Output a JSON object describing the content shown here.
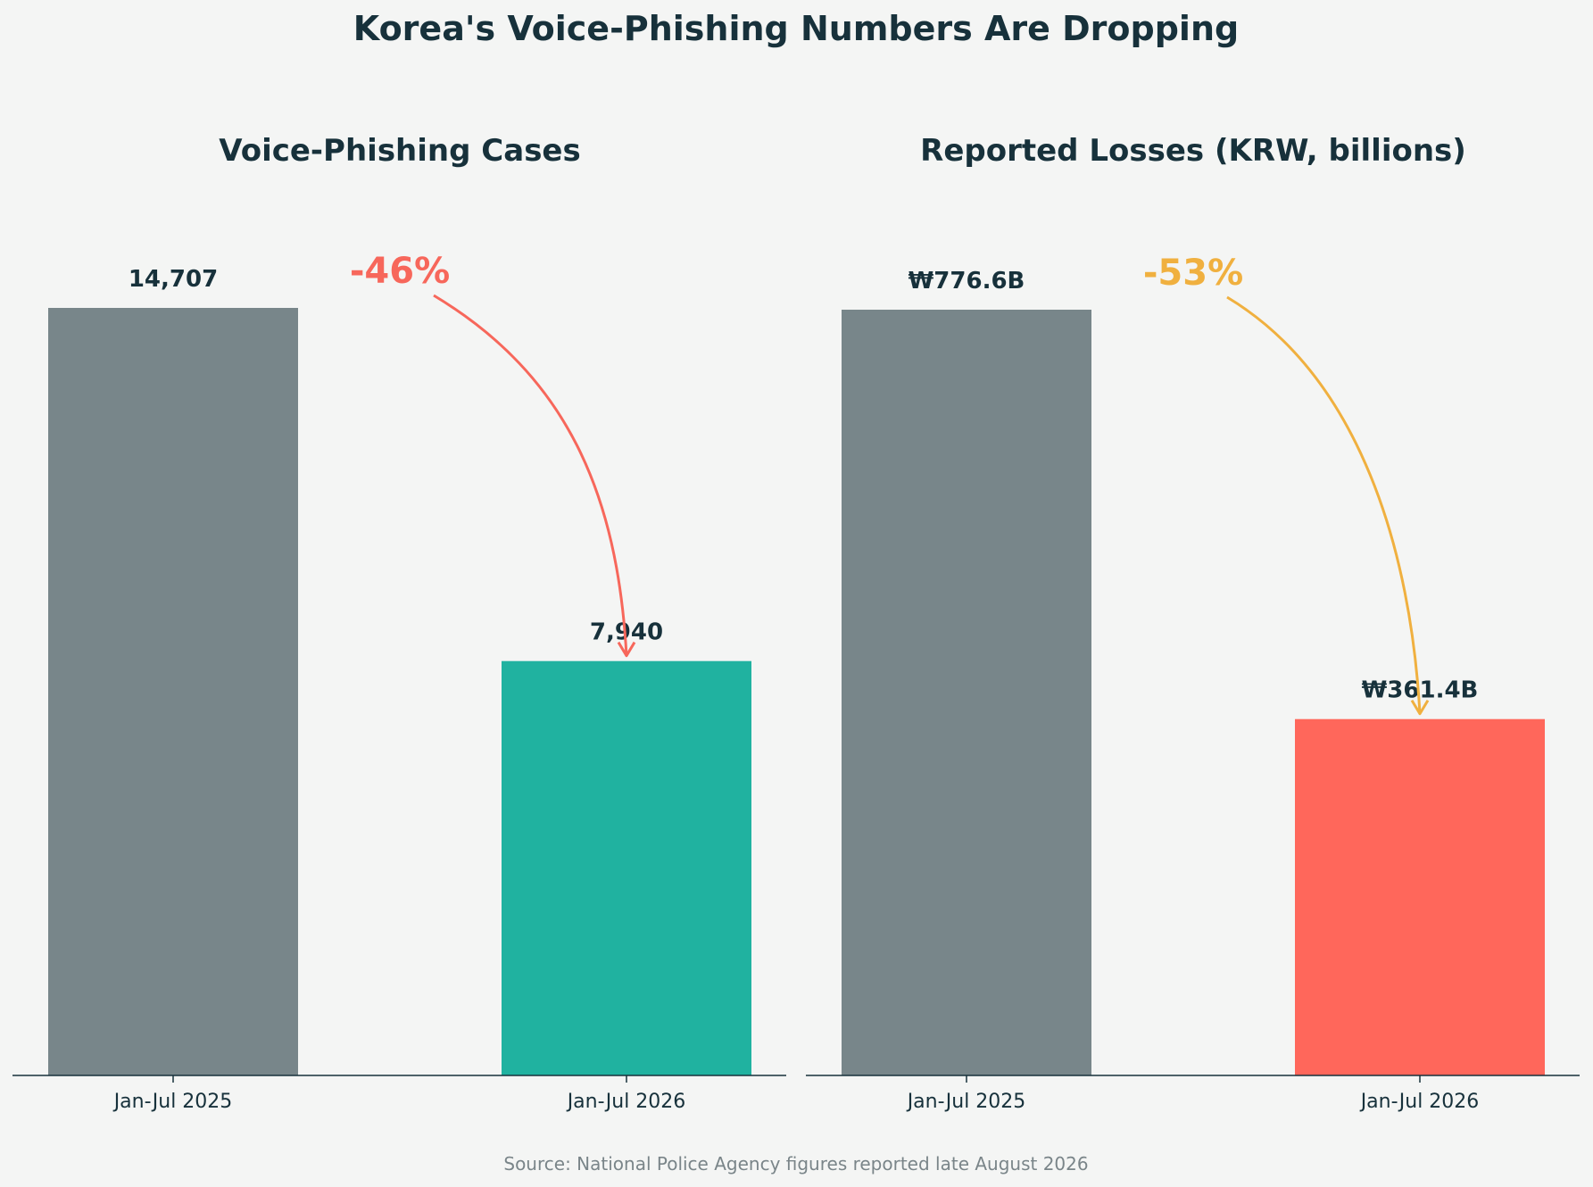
{
  "title": "Korea's Voice-Phishing Numbers Are Dropping",
  "source": "Source: National Police Agency figures reported late August 2026",
  "colors": {
    "background": "#f4f5f4",
    "text": "#17313b",
    "muted_text": "#7a8589",
    "baseline_bar": "#78868a",
    "cases_2026": "#20b2a0",
    "losses_2026": "#ff675b",
    "cases_change": "#f7675b",
    "losses_change": "#f0b03f"
  },
  "chart_data": [
    {
      "type": "bar",
      "title": "Voice-Phishing Cases",
      "categories": [
        "Jan-Jul 2025",
        "Jan-Jul 2026"
      ],
      "values": [
        14707,
        7940
      ],
      "value_labels": [
        "14,707",
        "7,940"
      ],
      "bar_colors": [
        "#78868a",
        "#20b2a0"
      ],
      "change_label": "-46%",
      "change_color": "#f7675b",
      "ylim": [
        0,
        14707
      ]
    },
    {
      "type": "bar",
      "title": "Reported Losses (KRW, billions)",
      "categories": [
        "Jan-Jul 2025",
        "Jan-Jul 2026"
      ],
      "values": [
        776.6,
        361.4
      ],
      "value_labels": [
        "₩776.6B",
        "₩361.4B"
      ],
      "bar_colors": [
        "#78868a",
        "#ff675b"
      ],
      "change_label": "-53%",
      "change_color": "#f0b03f",
      "ylim": [
        0,
        776.6
      ]
    }
  ]
}
